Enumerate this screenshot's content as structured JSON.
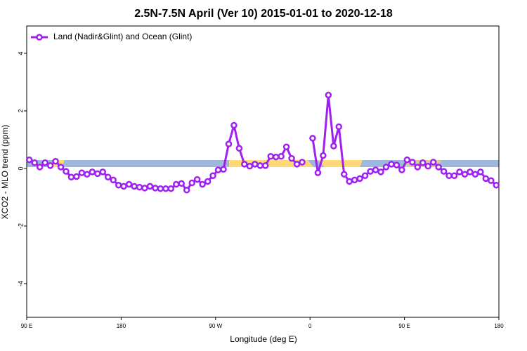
{
  "chart_data": {
    "type": "line",
    "title": "2.5N-7.5N April (Ver 10)   2015-01-01 to 2020-12-18",
    "x_label": "Longitude (deg E)",
    "y_label": "XCO2 - MLO trend (ppm)",
    "x": [
      92.5,
      97.5,
      102.5,
      107.5,
      112.5,
      117.5,
      122.5,
      127.5,
      132.5,
      137.5,
      142.5,
      147.5,
      152.5,
      157.5,
      162.5,
      167.5,
      172.5,
      177.5,
      182.5,
      187.5,
      192.5,
      197.5,
      202.5,
      207.5,
      212.5,
      217.5,
      222.5,
      227.5,
      232.5,
      237.5,
      242.5,
      247.5,
      252.5,
      257.5,
      262.5,
      267.5,
      272.5,
      277.5,
      282.5,
      287.5,
      292.5,
      297.5,
      302.5,
      307.5,
      312.5,
      317.5,
      322.5,
      327.5,
      332.5,
      337.5,
      342.5,
      347.5,
      352.5,
      357.5,
      362.5,
      367.5,
      372.5,
      377.5,
      382.5,
      387.5,
      392.5,
      397.5,
      402.5,
      407.5,
      412.5,
      417.5,
      422.5,
      427.5,
      432.5,
      437.5,
      442.5,
      447.5,
      452.5,
      457.5,
      462.5,
      467.5,
      472.5,
      477.5,
      482.5,
      487.5,
      492.5,
      497.5,
      502.5,
      507.5,
      512.5,
      517.5,
      522.5,
      527.5,
      532.5,
      537.5
    ],
    "series": [
      {
        "name": "Land (Nadir&Glint) and Ocean (Glint)",
        "color": "#a020f0",
        "values": [
          0.3,
          0.2,
          0.05,
          0.2,
          0.1,
          0.25,
          0.05,
          -0.1,
          -0.3,
          -0.28,
          -0.15,
          -0.2,
          -0.12,
          -0.18,
          -0.12,
          -0.3,
          -0.4,
          -0.58,
          -0.62,
          -0.55,
          -0.62,
          -0.65,
          -0.68,
          -0.62,
          -0.68,
          -0.7,
          -0.7,
          -0.7,
          -0.55,
          -0.52,
          -0.75,
          -0.5,
          -0.38,
          -0.55,
          -0.45,
          -0.25,
          -0.05,
          -0.03,
          0.85,
          1.5,
          0.7,
          0.15,
          0.08,
          0.15,
          0.1,
          0.1,
          0.42,
          0.4,
          0.42,
          0.75,
          0.35,
          0.15,
          0.22,
          null,
          1.05,
          -0.15,
          0.45,
          2.55,
          0.78,
          1.45,
          -0.2,
          -0.45,
          -0.4,
          -0.35,
          -0.25,
          -0.1,
          -0.05,
          -0.12,
          0.05,
          0.15,
          0.12,
          -0.05,
          0.3,
          0.22,
          0.05,
          0.2,
          0.08,
          0.22,
          0.05,
          -0.1,
          -0.25,
          -0.25,
          -0.12,
          -0.2,
          -0.12,
          -0.2,
          -0.12,
          -0.35,
          -0.42,
          -0.58
        ]
      }
    ],
    "xlim": [
      90,
      540
    ],
    "xticks": [
      {
        "value": 90,
        "label": "90 E"
      },
      180,
      {
        "value": 270,
        "label": "90 W"
      },
      {
        "value": 360,
        "label": "0"
      },
      {
        "value": 450,
        "label": "90 E"
      },
      {
        "value": 540,
        "label": "180"
      }
    ],
    "ylim": [
      -5.17,
      4.95
    ],
    "yticks": [
      4,
      2,
      0,
      -2,
      -4
    ],
    "legend": "top-left"
  }
}
